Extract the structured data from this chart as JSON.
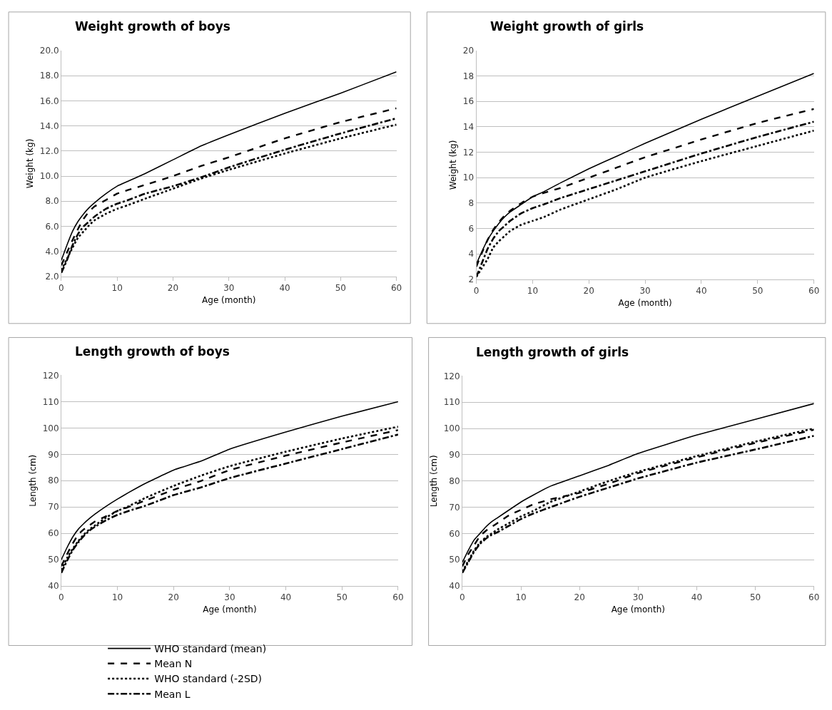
{
  "chart_data": [
    {
      "type": "line",
      "title": "Weight growth of boys",
      "xlabel": "Age (month)",
      "ylabel": "Weight (kg)",
      "x": [
        0,
        1,
        2,
        3,
        4,
        5,
        6,
        8,
        10,
        12,
        15,
        20,
        25,
        30,
        40,
        50,
        60
      ],
      "xlim": [
        0,
        60
      ],
      "xticks": [
        0,
        10,
        20,
        30,
        40,
        50,
        60
      ],
      "ylim": [
        2,
        20
      ],
      "yticks": [
        {
          "value": 2,
          "label": "2.0"
        },
        {
          "value": 4,
          "label": "4.0"
        },
        {
          "value": 6,
          "label": "6.0"
        },
        {
          "value": 8,
          "label": "8.0"
        },
        {
          "value": 10,
          "label": "10.0"
        },
        {
          "value": 12,
          "label": "12.0"
        },
        {
          "value": 14,
          "label": "14.0"
        },
        {
          "value": 16,
          "label": "16.0"
        },
        {
          "value": 18,
          "label": "18.0"
        },
        {
          "value": 20,
          "label": "20.0"
        }
      ],
      "grid": "y",
      "marker": "none",
      "series": [
        {
          "color": "#000000",
          "line_style": "solid",
          "values": [
            3.3,
            4.5,
            5.6,
            6.4,
            7.0,
            7.5,
            7.9,
            8.6,
            9.2,
            9.6,
            10.2,
            11.3,
            12.4,
            13.3,
            15.0,
            16.6,
            18.3
          ]
        },
        {
          "color": "#000000",
          "line_style": "dotted",
          "values": [
            2.5,
            3.4,
            4.3,
            5.1,
            5.6,
            6.1,
            6.5,
            7.0,
            7.4,
            7.7,
            8.2,
            9.0,
            9.8,
            10.5,
            11.8,
            13.0,
            14.1
          ]
        },
        {
          "color": "#000000",
          "line_style": "dashed",
          "values": [
            2.9,
            3.9,
            4.9,
            5.8,
            6.6,
            7.2,
            7.6,
            8.1,
            8.6,
            8.9,
            9.3,
            10.0,
            10.8,
            11.5,
            13.0,
            14.3,
            15.4
          ]
        },
        {
          "color": "#000000",
          "line_style": "dashdot",
          "values": [
            2.3,
            3.3,
            4.5,
            5.4,
            6.0,
            6.4,
            6.8,
            7.4,
            7.8,
            8.1,
            8.6,
            9.2,
            9.9,
            10.7,
            12.1,
            13.4,
            14.6
          ]
        }
      ]
    },
    {
      "type": "line",
      "title": "Weight growth of girls",
      "xlabel": "Age (month)",
      "ylabel": "Weight (kg)",
      "x": [
        0,
        1,
        2,
        3,
        4,
        5,
        6,
        8,
        10,
        12,
        15,
        20,
        25,
        30,
        40,
        50,
        60
      ],
      "xlim": [
        0,
        60
      ],
      "xticks": [
        0,
        10,
        20,
        30,
        40,
        50,
        60
      ],
      "ylim": [
        2,
        20
      ],
      "yticks": [
        2,
        4,
        6,
        8,
        10,
        12,
        14,
        16,
        18,
        20
      ],
      "grid": "y",
      "marker": "none",
      "series": [
        {
          "color": "#000000",
          "line_style": "solid",
          "values": [
            3.2,
            4.2,
            5.1,
            5.8,
            6.4,
            6.9,
            7.3,
            7.9,
            8.5,
            8.9,
            9.6,
            10.7,
            11.7,
            12.7,
            14.6,
            16.4,
            18.2
          ]
        },
        {
          "color": "#000000",
          "line_style": "dotted",
          "values": [
            2.2,
            2.9,
            3.6,
            4.5,
            5.0,
            5.4,
            5.8,
            6.3,
            6.6,
            6.9,
            7.5,
            8.3,
            9.1,
            10.0,
            11.3,
            12.5,
            13.7
          ]
        },
        {
          "color": "#000000",
          "line_style": "dashed",
          "values": [
            3.0,
            4.1,
            5.1,
            5.9,
            6.5,
            7.0,
            7.4,
            8.0,
            8.5,
            8.8,
            9.2,
            10.0,
            10.8,
            11.6,
            13.0,
            14.3,
            15.4
          ]
        },
        {
          "color": "#000000",
          "line_style": "dashdot",
          "values": [
            2.2,
            3.3,
            4.4,
            5.2,
            5.8,
            6.2,
            6.6,
            7.2,
            7.6,
            7.9,
            8.4,
            9.1,
            9.8,
            10.5,
            11.9,
            13.2,
            14.4
          ]
        }
      ]
    },
    {
      "type": "line",
      "title": "Length growth of boys",
      "xlabel": "Age (month)",
      "ylabel": "Length (cm)",
      "x": [
        0,
        1,
        2,
        3,
        4,
        5,
        6,
        8,
        10,
        12,
        15,
        20,
        25,
        30,
        40,
        50,
        60
      ],
      "xlim": [
        0,
        60
      ],
      "xticks": [
        0,
        10,
        20,
        30,
        40,
        50,
        60
      ],
      "ylim": [
        40,
        120
      ],
      "yticks": [
        40,
        50,
        60,
        70,
        80,
        90,
        100,
        110,
        120
      ],
      "grid": "y",
      "marker": "none",
      "series": [
        {
          "color": "#000000",
          "line_style": "solid",
          "values": [
            50,
            54.5,
            58.5,
            61.5,
            63.7,
            65.6,
            67.3,
            70.3,
            73,
            75.5,
            79,
            84,
            87.5,
            92,
            98.5,
            104.5,
            110
          ]
        },
        {
          "color": "#000000",
          "line_style": "dotted",
          "values": [
            46,
            50.5,
            54,
            57,
            59.5,
            61.5,
            63,
            66,
            68.5,
            70.3,
            73.5,
            78,
            82,
            85.5,
            91,
            96,
            100.5
          ]
        },
        {
          "color": "#000000",
          "line_style": "dashed",
          "values": [
            47.5,
            52,
            56,
            59.5,
            61.5,
            63,
            64.5,
            66.5,
            68.5,
            70,
            72.5,
            76.5,
            80,
            84,
            89.5,
            94.5,
            99.2
          ]
        },
        {
          "color": "#000000",
          "line_style": "dashdot",
          "values": [
            45,
            49.5,
            53.5,
            56.5,
            59,
            61,
            62.5,
            65,
            67,
            68.5,
            70.5,
            74.5,
            77.5,
            81,
            86.5,
            92,
            97.5
          ]
        }
      ]
    },
    {
      "type": "line",
      "title": "Length growth of girls",
      "xlabel": "Age (month)",
      "ylabel": "Length (cm)",
      "x": [
        0,
        1,
        2,
        3,
        4,
        5,
        6,
        8,
        10,
        12,
        15,
        20,
        25,
        30,
        40,
        50,
        60
      ],
      "xlim": [
        0,
        60
      ],
      "xticks": [
        0,
        10,
        20,
        30,
        40,
        50,
        60
      ],
      "ylim": [
        40,
        120
      ],
      "yticks": [
        40,
        50,
        60,
        70,
        80,
        90,
        100,
        110,
        120
      ],
      "grid": "y",
      "marker": "none",
      "legend": "bottom",
      "series": [
        {
          "name": "WHO standard (mean)",
          "color": "#000000",
          "line_style": "solid",
          "values": [
            49,
            53.5,
            57.5,
            60,
            62.5,
            64.5,
            66,
            69,
            72,
            74.5,
            78,
            82,
            86,
            90.5,
            97.5,
            103.5,
            109.5
          ]
        },
        {
          "name": "WHO standard (-2SD)",
          "color": "#000000",
          "line_style": "dotted",
          "values": [
            45.5,
            49.5,
            53.5,
            56.5,
            58.5,
            60,
            61.5,
            64,
            66.5,
            68.5,
            72,
            76,
            80,
            83.5,
            89.5,
            95,
            100
          ]
        },
        {
          "name": "Mean N",
          "color": "#000000",
          "line_style": "dashed",
          "values": [
            47.5,
            52,
            55.5,
            59,
            61,
            62.5,
            64,
            67,
            69,
            71,
            73,
            75.5,
            79,
            83,
            89,
            94.5,
            99.5
          ]
        },
        {
          "name": "Mean L",
          "color": "#000000",
          "line_style": "dashdot",
          "values": [
            45,
            49,
            53,
            56,
            58,
            59.5,
            60.5,
            63,
            65.5,
            67.5,
            70,
            74,
            77.5,
            81,
            87,
            92,
            97.2
          ]
        }
      ]
    }
  ]
}
